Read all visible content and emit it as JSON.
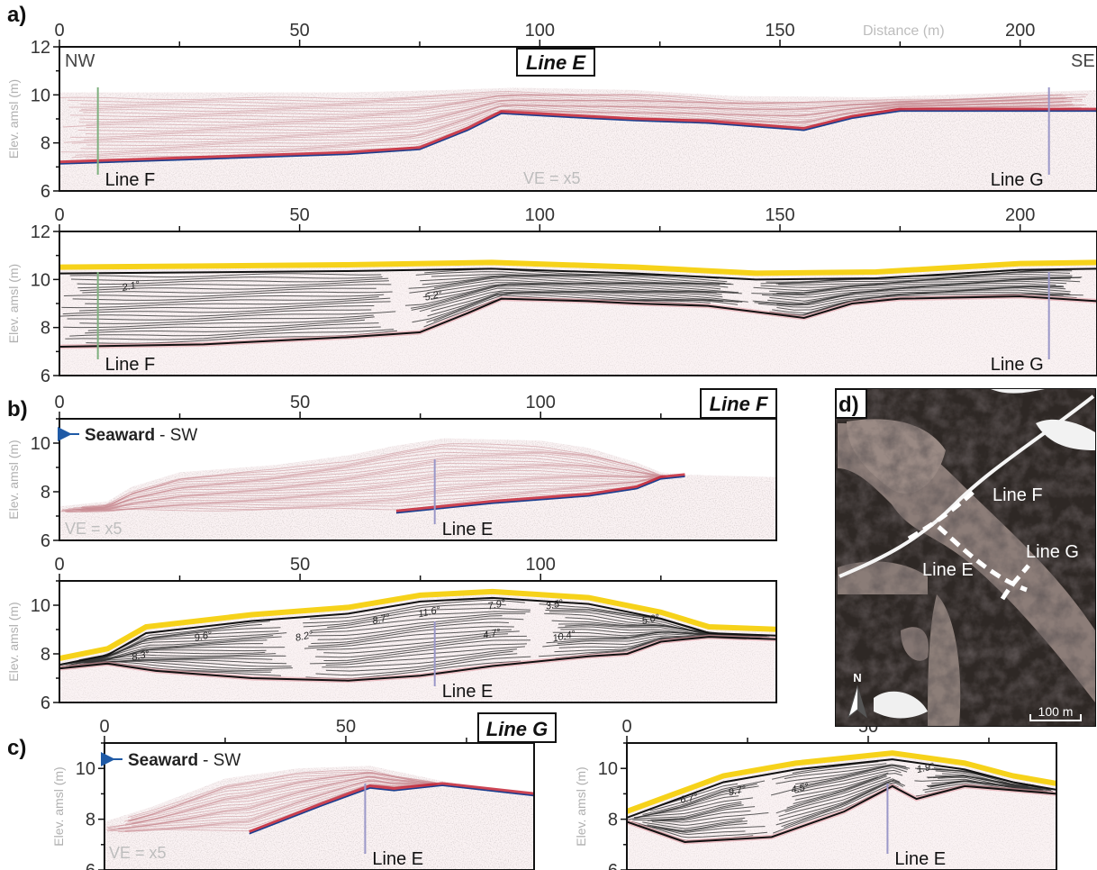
{
  "panel_letters": {
    "a": "a)",
    "b": "b)",
    "c": "c)",
    "d": "d)"
  },
  "line_titles": {
    "E": "Line E",
    "F": "Line F",
    "G": "Line G"
  },
  "y_axis_label": "Elev. amsl (m)",
  "distance_label": "Distance (m)",
  "ve_label": "VE = x5",
  "direction": {
    "nw": "NW",
    "se": "SE",
    "seaward": "Seaward",
    "sw": "- SW"
  },
  "crossing_labels": {
    "line_e": "Line E",
    "line_f": "Line F",
    "line_g": "Line G"
  },
  "map": {
    "north": "N",
    "scale": "100 m",
    "label_f": "Line F",
    "label_g": "Line G",
    "label_e": "Line E"
  },
  "colors": {
    "surface": "#f6d21a",
    "interface": "#111111",
    "line_f": "#7fb07f",
    "line_g": "#9a97c8",
    "arrow": "#1f5aa6"
  },
  "chart_data": [
    {
      "id": "a-raw",
      "type": "gpr-section",
      "title": "Line E",
      "x_ticks": [
        0,
        50,
        100,
        150,
        200
      ],
      "y_ticks": [
        6,
        8,
        10,
        12
      ],
      "xlim": [
        0,
        216
      ],
      "ylim": [
        6,
        12
      ],
      "surface": [
        [
          0,
          10.1
        ],
        [
          20,
          10.1
        ],
        [
          40,
          10.1
        ],
        [
          60,
          10.1
        ],
        [
          80,
          10.2
        ],
        [
          95,
          10.3
        ],
        [
          120,
          10.2
        ],
        [
          140,
          9.95
        ],
        [
          170,
          9.9
        ],
        [
          200,
          10.1
        ],
        [
          216,
          10.2
        ]
      ],
      "reflector": [
        [
          0,
          7.2
        ],
        [
          30,
          7.4
        ],
        [
          60,
          7.6
        ],
        [
          75,
          7.8
        ],
        [
          85,
          8.6
        ],
        [
          92,
          9.3
        ],
        [
          110,
          9.1
        ],
        [
          120,
          9.0
        ],
        [
          135,
          8.9
        ],
        [
          155,
          8.6
        ],
        [
          165,
          9.1
        ],
        [
          175,
          9.4
        ],
        [
          200,
          9.4
        ],
        [
          216,
          9.4
        ]
      ],
      "crossings": [
        {
          "x": 8,
          "name": "Line F"
        },
        {
          "x": 206,
          "name": "Line G"
        }
      ]
    },
    {
      "id": "a-interp",
      "type": "gpr-interpretation",
      "title": "",
      "x_ticks": [
        0,
        50,
        100,
        150,
        200
      ],
      "y_ticks": [
        6,
        8,
        10,
        12
      ],
      "xlim": [
        0,
        216
      ],
      "ylim": [
        6,
        12
      ],
      "surface": [
        [
          0,
          10.4
        ],
        [
          30,
          10.45
        ],
        [
          60,
          10.5
        ],
        [
          90,
          10.6
        ],
        [
          120,
          10.4
        ],
        [
          145,
          10.15
        ],
        [
          170,
          10.2
        ],
        [
          200,
          10.55
        ],
        [
          216,
          10.6
        ]
      ],
      "base": [
        [
          0,
          7.2
        ],
        [
          30,
          7.3
        ],
        [
          60,
          7.6
        ],
        [
          75,
          7.8
        ],
        [
          85,
          8.6
        ],
        [
          92,
          9.2
        ],
        [
          110,
          9.1
        ],
        [
          120,
          9.0
        ],
        [
          135,
          8.9
        ],
        [
          155,
          8.4
        ],
        [
          165,
          9.0
        ],
        [
          175,
          9.2
        ],
        [
          200,
          9.3
        ],
        [
          216,
          9.1
        ]
      ],
      "dips": [
        {
          "x": 15,
          "y": 9.6,
          "value": "2.1°"
        },
        {
          "x": 78,
          "y": 9.2,
          "value": "5.2°"
        }
      ],
      "crossings": [
        {
          "x": 8,
          "name": "Line F"
        },
        {
          "x": 206,
          "name": "Line G"
        }
      ]
    },
    {
      "id": "b-raw",
      "type": "gpr-section",
      "title": "Line F",
      "x_ticks": [
        0,
        50,
        100
      ],
      "y_ticks": [
        6,
        8,
        10
      ],
      "xlim": [
        0,
        149
      ],
      "ylim": [
        6,
        11
      ],
      "surface": [
        [
          0,
          7.4
        ],
        [
          10,
          7.6
        ],
        [
          15,
          8.2
        ],
        [
          25,
          8.8
        ],
        [
          45,
          9.1
        ],
        [
          60,
          9.5
        ],
        [
          70,
          9.9
        ],
        [
          80,
          10.2
        ],
        [
          100,
          10.1
        ],
        [
          110,
          9.8
        ],
        [
          120,
          9.2
        ],
        [
          125,
          8.8
        ],
        [
          130,
          8.7
        ],
        [
          149,
          8.6
        ]
      ],
      "reflector": [
        [
          70,
          7.2
        ],
        [
          90,
          7.6
        ],
        [
          110,
          7.9
        ],
        [
          120,
          8.2
        ],
        [
          125,
          8.6
        ],
        [
          130,
          8.7
        ]
      ],
      "crossings": [
        {
          "x": 78,
          "name": "Line E"
        }
      ]
    },
    {
      "id": "b-interp",
      "type": "gpr-interpretation",
      "title": "",
      "x_ticks": [
        0,
        50,
        100
      ],
      "y_ticks": [
        6,
        8,
        10
      ],
      "xlim": [
        0,
        149
      ],
      "ylim": [
        6,
        11
      ],
      "surface": [
        [
          0,
          7.7
        ],
        [
          10,
          8.1
        ],
        [
          18,
          9.0
        ],
        [
          40,
          9.5
        ],
        [
          60,
          9.8
        ],
        [
          75,
          10.3
        ],
        [
          90,
          10.45
        ],
        [
          110,
          10.2
        ],
        [
          125,
          9.6
        ],
        [
          135,
          9.0
        ],
        [
          149,
          8.9
        ]
      ],
      "base": [
        [
          0,
          7.4
        ],
        [
          10,
          7.6
        ],
        [
          20,
          7.3
        ],
        [
          40,
          7.0
        ],
        [
          60,
          6.9
        ],
        [
          75,
          7.1
        ],
        [
          90,
          7.5
        ],
        [
          110,
          7.9
        ],
        [
          118,
          8.0
        ],
        [
          125,
          8.5
        ],
        [
          135,
          8.7
        ],
        [
          149,
          8.6
        ]
      ],
      "dips": [
        {
          "x": 17,
          "y": 7.8,
          "value": "8.3°"
        },
        {
          "x": 30,
          "y": 8.6,
          "value": "9.6°"
        },
        {
          "x": 51,
          "y": 8.6,
          "value": "8.2°"
        },
        {
          "x": 67,
          "y": 9.3,
          "value": "8.7°"
        },
        {
          "x": 77,
          "y": 9.6,
          "value": "11.6°"
        },
        {
          "x": 91,
          "y": 9.9,
          "value": "7.9°"
        },
        {
          "x": 103,
          "y": 9.9,
          "value": "3.5°"
        },
        {
          "x": 90,
          "y": 8.7,
          "value": "4.7°"
        },
        {
          "x": 105,
          "y": 8.6,
          "value": "10.4°"
        },
        {
          "x": 123,
          "y": 9.3,
          "value": "5.0°"
        }
      ],
      "crossings": [
        {
          "x": 78,
          "name": "Line E"
        }
      ]
    },
    {
      "id": "c-raw",
      "type": "gpr-section",
      "title": "Line G",
      "x_ticks": [
        0,
        50
      ],
      "y_ticks": [
        6,
        8,
        10
      ],
      "xlim": [
        0,
        89
      ],
      "ylim": [
        6,
        11
      ],
      "surface": [
        [
          0,
          7.9
        ],
        [
          10,
          8.5
        ],
        [
          25,
          9.6
        ],
        [
          40,
          10.0
        ],
        [
          55,
          10.1
        ],
        [
          70,
          9.5
        ],
        [
          80,
          9.2
        ],
        [
          89,
          9.0
        ]
      ],
      "reflector": [
        [
          30,
          7.5
        ],
        [
          45,
          8.6
        ],
        [
          55,
          9.3
        ],
        [
          60,
          9.2
        ],
        [
          70,
          9.4
        ],
        [
          89,
          9.0
        ]
      ],
      "crossings": [
        {
          "x": 54,
          "name": "Line E"
        }
      ]
    },
    {
      "id": "c-interp",
      "type": "gpr-interpretation",
      "title": "",
      "x_ticks": [
        0,
        50
      ],
      "y_ticks": [
        6,
        8,
        10
      ],
      "xlim": [
        0,
        89
      ],
      "ylim": [
        6,
        11
      ],
      "surface": [
        [
          0,
          8.2
        ],
        [
          10,
          8.9
        ],
        [
          20,
          9.6
        ],
        [
          35,
          10.1
        ],
        [
          55,
          10.5
        ],
        [
          70,
          10.1
        ],
        [
          80,
          9.6
        ],
        [
          89,
          9.3
        ]
      ],
      "base": [
        [
          0,
          7.9
        ],
        [
          12,
          7.1
        ],
        [
          30,
          7.3
        ],
        [
          45,
          8.3
        ],
        [
          55,
          9.3
        ],
        [
          60,
          8.8
        ],
        [
          70,
          9.3
        ],
        [
          89,
          9.0
        ]
      ],
      "dips": [
        {
          "x": 13,
          "y": 8.7,
          "value": "6.7°"
        },
        {
          "x": 23,
          "y": 9.0,
          "value": "9.7°"
        },
        {
          "x": 36,
          "y": 9.1,
          "value": "4.5°"
        },
        {
          "x": 62,
          "y": 9.9,
          "value": "1.9°"
        }
      ],
      "crossings": [
        {
          "x": 54,
          "name": "Line E"
        }
      ]
    }
  ]
}
